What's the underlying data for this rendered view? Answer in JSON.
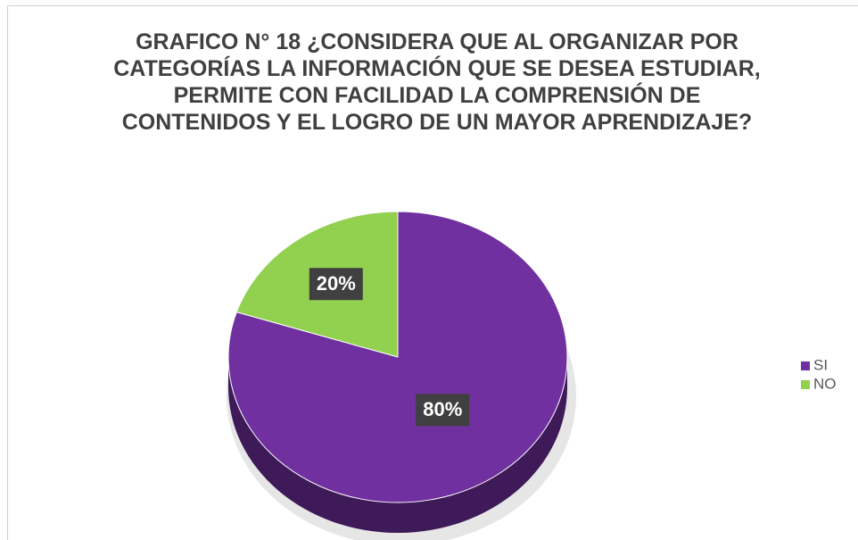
{
  "chart_data": {
    "type": "pie",
    "title": "GRAFICO N° 18 ¿CONSIDERA QUE AL ORGANIZAR POR CATEGORÍAS LA INFORMACIÓN QUE SE DESEA ESTUDIAR, PERMITE CON FACILIDAD LA COMPRENSIÓN DE CONTENIDOS Y EL LOGRO DE UN MAYOR APRENDIZAJE?",
    "categories": [
      "SI",
      "NO"
    ],
    "values": [
      80,
      20
    ],
    "value_labels": [
      "80%",
      "20%"
    ],
    "colors": [
      "#7030a0",
      "#92d050"
    ],
    "legend": "right"
  }
}
